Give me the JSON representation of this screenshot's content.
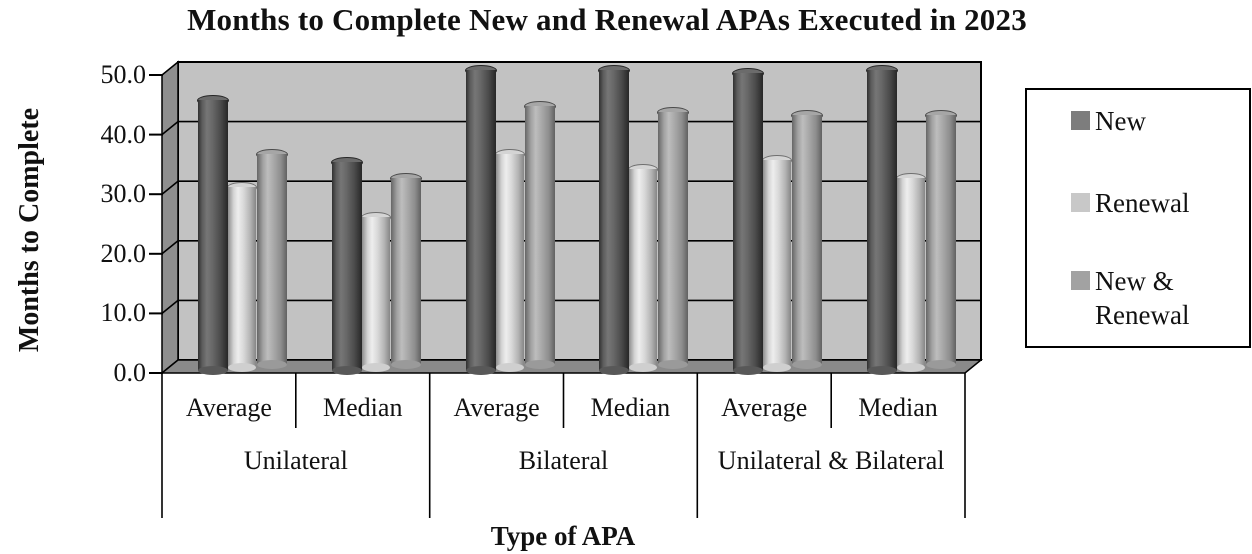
{
  "chart_data": {
    "type": "bar",
    "subtype": "3d-cylinder",
    "title": "Months to Complete New and Renewal APAs Executed in 2023",
    "xlabel": "Type of APA",
    "ylabel": "Months to Complete",
    "ylim": [
      0,
      50
    ],
    "y_ticks": [
      "0.0",
      "10.0",
      "20.0",
      "30.0",
      "40.0",
      "50.0"
    ],
    "grid": true,
    "legend_position": "right",
    "groups": [
      "Unilateral",
      "Bilateral",
      "Unilateral & Bilateral"
    ],
    "categories": [
      "Average",
      "Median",
      "Average",
      "Median",
      "Average",
      "Median"
    ],
    "series": [
      {
        "name": "New",
        "color": "#7d7d7d",
        "values": [
          45.5,
          35.0,
          50.5,
          50.5,
          50.0,
          50.5
        ]
      },
      {
        "name": "Renewal",
        "color": "#c8c8c8",
        "values": [
          30.5,
          25.5,
          36.0,
          33.5,
          35.0,
          32.0
        ]
      },
      {
        "name": "New & Renewal",
        "color": "#a2a2a2",
        "values": [
          35.5,
          31.5,
          43.5,
          42.5,
          42.0,
          42.0
        ]
      }
    ],
    "colors": {
      "back_wall": "#c2c2c2",
      "side_wall": "#8f8f8f",
      "floor": "#8a8a8a",
      "line": "#000000",
      "background": "#ffffff"
    }
  }
}
